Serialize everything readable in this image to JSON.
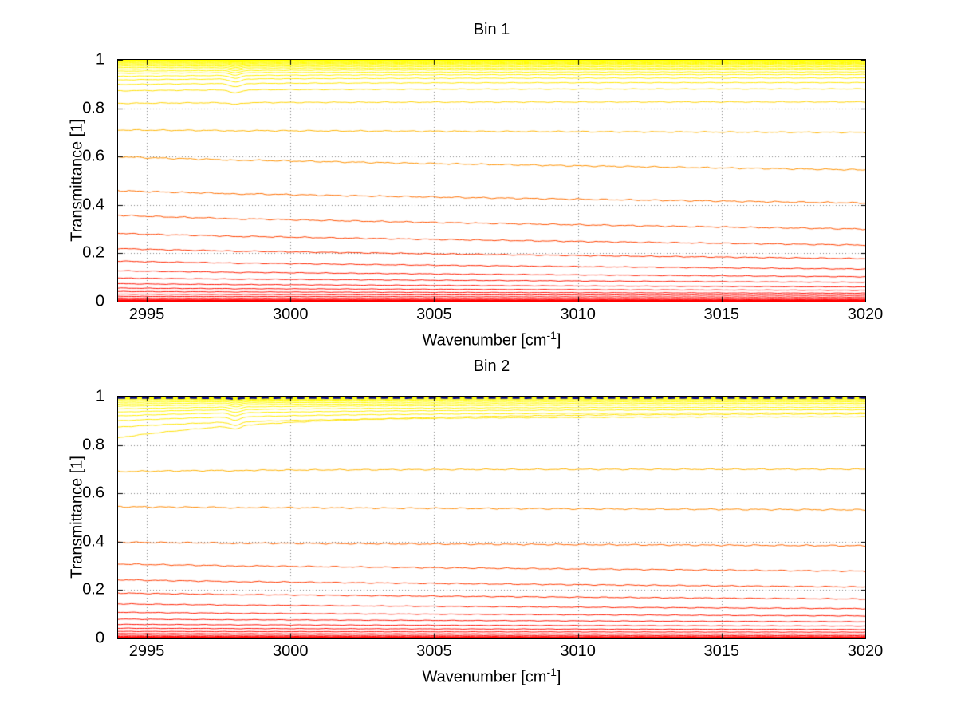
{
  "figure": {
    "background": "#ffffff",
    "description": "Two stacked MATLAB-style spectra plots of transmittance vs wavenumber, many nearly flat curves colored from red (low transmittance) to yellow (high transmittance)"
  },
  "chart_data": [
    {
      "type": "line",
      "title": "Bin 1",
      "xlabel_parts": {
        "base": "Wavenumber [cm",
        "sup": "-1",
        "end": "]"
      },
      "ylabel": "Transmittance [1]",
      "xlim": [
        2994,
        3020
      ],
      "ylim": [
        0,
        1
      ],
      "xticks": [
        2995,
        3000,
        3005,
        3010,
        3015,
        3020
      ],
      "xtick_labels": [
        "2995",
        "3000",
        "3005",
        "3010",
        "3015",
        "3020"
      ],
      "yticks": [
        0,
        0.2,
        0.4,
        0.6,
        0.8,
        1
      ],
      "ytick_labels": [
        "0",
        "0.2",
        "0.4",
        "0.6",
        "0.8",
        "1"
      ],
      "grid": "dotted",
      "grid_color": "#808080",
      "axis_color": "#000000",
      "colormap": {
        "low": "#ff0000",
        "high": "#ffff00",
        "description": "line color maps transmittance level: red near 0, orange mid, yellow near 1"
      },
      "series_note": "each series is one nearly flat transmittance spectrum; left/right are values at the left and right plot edges",
      "series": [
        {
          "left": 1.0,
          "right": 1.0,
          "width": 4
        },
        {
          "left": 0.998,
          "right": 0.998,
          "width": 2
        },
        {
          "left": 0.996,
          "right": 0.997
        },
        {
          "left": 0.993,
          "right": 0.994
        },
        {
          "left": 0.99,
          "right": 0.991
        },
        {
          "left": 0.987,
          "right": 0.988
        },
        {
          "left": 0.983,
          "right": 0.985
        },
        {
          "left": 0.979,
          "right": 0.981
        },
        {
          "left": 0.974,
          "right": 0.977
        },
        {
          "left": 0.968,
          "right": 0.972
        },
        {
          "left": 0.961,
          "right": 0.966
        },
        {
          "left": 0.953,
          "right": 0.959
        },
        {
          "left": 0.944,
          "right": 0.95
        },
        {
          "left": 0.932,
          "right": 0.939
        },
        {
          "left": 0.917,
          "right": 0.925
        },
        {
          "left": 0.898,
          "right": 0.906
        },
        {
          "left": 0.872,
          "right": 0.88
        },
        {
          "left": 0.82,
          "right": 0.826
        },
        {
          "left": 0.71,
          "right": 0.7
        },
        {
          "left": 0.6,
          "right": 0.545
        },
        {
          "left": 0.46,
          "right": 0.408
        },
        {
          "left": 0.358,
          "right": 0.3
        },
        {
          "left": 0.283,
          "right": 0.234
        },
        {
          "left": 0.22,
          "right": 0.178
        },
        {
          "left": 0.168,
          "right": 0.135
        },
        {
          "left": 0.128,
          "right": 0.103
        },
        {
          "left": 0.098,
          "right": 0.08
        },
        {
          "left": 0.074,
          "right": 0.061
        },
        {
          "left": 0.056,
          "right": 0.047
        },
        {
          "left": 0.042,
          "right": 0.035
        },
        {
          "left": 0.031,
          "right": 0.026
        },
        {
          "left": 0.022,
          "right": 0.019
        },
        {
          "left": 0.015,
          "right": 0.013
        },
        {
          "left": 0.01,
          "right": 0.009
        },
        {
          "left": 0.006,
          "right": 0.005
        },
        {
          "left": 0.003,
          "right": 0.003
        },
        {
          "left": 0.001,
          "right": 0.001
        },
        {
          "left": 0.0,
          "right": 0.0,
          "width": 5
        }
      ]
    },
    {
      "type": "line",
      "title": "Bin 2",
      "xlabel_parts": {
        "base": "Wavenumber [cm",
        "sup": "-1",
        "end": "]"
      },
      "ylabel": "Transmittance [1]",
      "xlim": [
        2994,
        3020
      ],
      "ylim": [
        0,
        1
      ],
      "xticks": [
        2995,
        3000,
        3005,
        3010,
        3015,
        3020
      ],
      "xtick_labels": [
        "2995",
        "3000",
        "3005",
        "3010",
        "3015",
        "3020"
      ],
      "yticks": [
        0,
        0.2,
        0.4,
        0.6,
        0.8,
        1
      ],
      "ytick_labels": [
        "0",
        "0.2",
        "0.4",
        "0.6",
        "0.8",
        "1"
      ],
      "grid": "dotted",
      "grid_color": "#808080",
      "axis_color": "#000000",
      "colormap": {
        "low": "#ff0000",
        "high": "#ffff00",
        "description": "line color maps transmittance level: red near 0, orange mid, yellow near 1"
      },
      "series_note": "each series is one nearly flat transmittance spectrum; left/right are values at the left and right plot edges; last series is a dark blue dashed line at the top",
      "series": [
        {
          "left": 0.999,
          "right": 0.999,
          "width": 3
        },
        {
          "left": 0.997,
          "right": 0.997
        },
        {
          "left": 0.994,
          "right": 0.995
        },
        {
          "left": 0.991,
          "right": 0.993
        },
        {
          "left": 0.987,
          "right": 0.99
        },
        {
          "left": 0.982,
          "right": 0.987
        },
        {
          "left": 0.976,
          "right": 0.983
        },
        {
          "left": 0.969,
          "right": 0.978
        },
        {
          "left": 0.96,
          "right": 0.972
        },
        {
          "left": 0.949,
          "right": 0.965
        },
        {
          "left": 0.936,
          "right": 0.956
        },
        {
          "left": 0.92,
          "right": 0.946
        },
        {
          "left": 0.9,
          "right": 0.933
        },
        {
          "left": 0.874,
          "right": 0.917
        },
        {
          "left": 0.83,
          "right": 0.93
        },
        {
          "left": 0.69,
          "right": 0.7
        },
        {
          "left": 0.545,
          "right": 0.532
        },
        {
          "left": 0.398,
          "right": 0.383
        },
        {
          "left": 0.308,
          "right": 0.278
        },
        {
          "left": 0.243,
          "right": 0.213
        },
        {
          "left": 0.188,
          "right": 0.163
        },
        {
          "left": 0.143,
          "right": 0.123
        },
        {
          "left": 0.108,
          "right": 0.093
        },
        {
          "left": 0.08,
          "right": 0.069
        },
        {
          "left": 0.058,
          "right": 0.051
        },
        {
          "left": 0.042,
          "right": 0.037
        },
        {
          "left": 0.029,
          "right": 0.026
        },
        {
          "left": 0.02,
          "right": 0.018
        },
        {
          "left": 0.013,
          "right": 0.012
        },
        {
          "left": 0.008,
          "right": 0.007
        },
        {
          "left": 0.004,
          "right": 0.004
        },
        {
          "left": 0.001,
          "right": 0.001
        },
        {
          "left": 0.0,
          "right": 0.0,
          "width": 4
        },
        {
          "left": 0.995,
          "right": 0.995,
          "width": 2.5,
          "color": "#00008b",
          "dash": true,
          "name": "top dashed reference line"
        }
      ]
    }
  ]
}
